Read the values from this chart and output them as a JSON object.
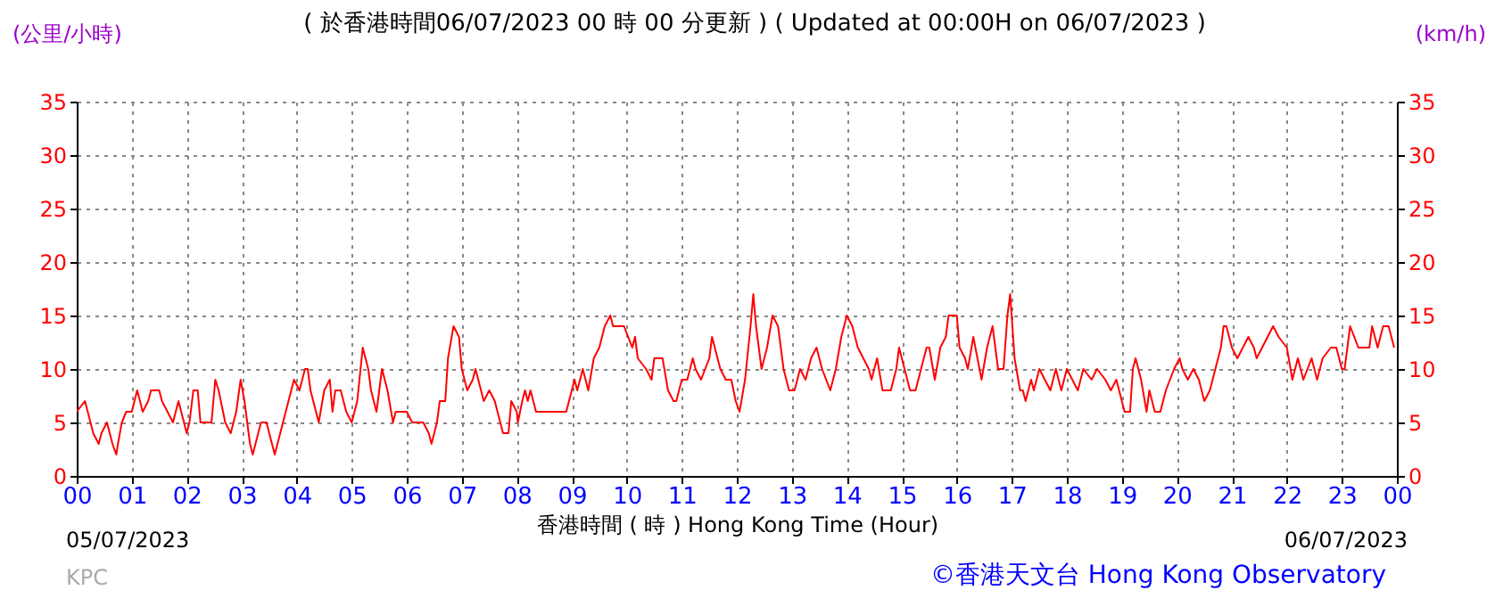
{
  "chart_data": {
    "type": "line",
    "title": "( 於香港時間06/07/2023 00 時 00 分更新 ) ( Updated at 00:00H on 06/07/2023 )",
    "xlabel": "香港時間 ( 時 )  Hong Kong Time (Hour)",
    "ylabel": "(公里/小時)",
    "y2label": "(km/h)",
    "annotations": [
      "05/07/2023",
      "06/07/2023",
      "KPC",
      "©香港天文台 Hong Kong Observatory"
    ],
    "x": [
      0,
      0.15,
      0.2,
      0.25,
      0.3,
      0.4,
      0.45,
      0.55,
      0.6,
      0.65,
      0.72,
      0.75,
      0.82,
      0.9,
      1.0,
      1.05,
      1.1,
      1.2,
      1.3,
      1.35,
      1.5,
      1.55,
      1.65,
      1.75,
      1.85,
      1.9,
      2.0,
      2.05,
      2.12,
      2.2,
      2.25,
      2.45,
      2.52,
      2.58,
      2.7,
      2.8,
      2.9,
      2.98,
      3.05,
      3.1,
      3.15,
      3.2,
      3.3,
      3.35,
      3.45,
      3.55,
      3.6,
      3.7,
      3.8,
      3.9,
      3.95,
      4.05,
      4.15,
      4.2,
      4.25,
      4.4,
      4.5,
      4.6,
      4.65,
      4.7,
      4.8,
      4.9,
      5.0,
      5.1,
      5.2,
      5.3,
      5.35,
      5.45,
      5.55,
      5.65,
      5.75,
      5.8,
      6.0,
      6.1,
      6.3,
      6.4,
      6.45,
      6.55,
      6.6,
      6.7,
      6.75,
      6.85,
      6.95,
      7.0,
      7.1,
      7.2,
      7.25,
      7.35,
      7.4,
      7.5,
      7.6,
      7.7,
      7.75,
      7.85,
      7.9,
      8.0,
      8.02,
      8.1,
      8.15,
      8.2,
      8.25,
      8.3,
      8.35,
      8.9,
      8.95,
      9.0,
      9.05,
      9.1,
      9.2,
      9.25,
      9.3,
      9.4,
      9.5,
      9.6,
      9.7,
      9.75,
      9.95,
      10.1,
      10.15,
      10.2,
      10.35,
      10.45,
      10.5,
      10.65,
      10.75,
      10.85,
      10.9,
      11.0,
      11.1,
      11.2,
      11.25,
      11.35,
      11.5,
      11.55,
      11.65,
      11.7,
      11.8,
      11.9,
      11.98,
      12.05,
      12.15,
      12.25,
      12.3,
      12.35,
      12.45,
      12.55,
      12.65,
      12.75,
      12.85,
      12.95,
      13.05,
      13.15,
      13.25,
      13.35,
      13.45,
      13.55,
      13.7,
      13.8,
      13.9,
      14.0,
      14.1,
      14.2,
      14.3,
      14.4,
      14.45,
      14.55,
      14.65,
      14.8,
      14.9,
      14.95,
      15.05,
      15.15,
      15.25,
      15.35,
      15.45,
      15.5,
      15.6,
      15.7,
      15.8,
      15.85,
      16.0,
      16.05,
      16.15,
      16.2,
      16.3,
      16.45,
      16.55,
      16.65,
      16.75,
      16.85,
      16.92,
      16.97,
      17.05,
      17.15,
      17.2,
      17.25,
      17.35,
      17.4,
      17.5,
      17.6,
      17.7,
      17.8,
      17.9,
      18.0,
      18.1,
      18.2,
      18.3,
      18.45,
      18.55,
      18.7,
      18.8,
      18.9,
      18.95,
      19.05,
      19.15,
      19.2,
      19.25,
      19.35,
      19.45,
      19.5,
      19.6,
      19.7,
      19.8,
      19.95,
      20.05,
      20.1,
      20.2,
      20.3,
      20.4,
      20.5,
      20.6,
      20.7,
      20.8,
      20.85,
      20.9,
      21.0,
      21.1,
      21.2,
      21.3,
      21.4,
      21.45,
      21.55,
      21.65,
      21.75,
      21.85,
      22.0,
      22.1,
      22.2,
      22.3,
      22.45,
      22.55,
      22.65,
      22.8,
      22.9,
      23.0,
      23.05,
      23.1,
      23.15,
      23.3,
      23.5,
      23.55,
      23.65,
      23.75,
      23.85,
      23.95
    ],
    "series": [
      {
        "color": "#ff0000",
        "values": [
          6,
          7,
          6,
          5,
          4,
          3,
          4,
          5,
          4,
          3,
          2,
          3,
          5,
          6,
          6,
          7,
          8,
          6,
          7,
          8,
          8,
          7,
          6,
          5,
          7,
          6,
          4,
          5,
          8,
          8,
          5,
          5,
          9,
          8,
          5,
          4,
          6,
          9,
          7,
          5,
          3,
          2,
          4,
          5,
          5,
          3,
          2,
          4,
          6,
          8,
          9,
          8,
          10,
          10,
          8,
          5,
          8,
          9,
          6,
          8,
          8,
          6,
          5,
          7,
          12,
          10,
          8,
          6,
          10,
          8,
          5,
          6,
          6,
          5,
          5,
          4,
          3,
          5,
          7,
          7,
          11,
          14,
          13,
          10,
          8,
          9,
          10,
          8,
          7,
          8,
          7,
          5,
          4,
          4,
          7,
          6,
          5,
          7,
          8,
          7,
          8,
          7,
          6,
          6,
          7,
          8,
          9,
          8,
          10,
          9,
          8,
          11,
          12,
          14,
          15,
          14,
          14,
          12,
          13,
          11,
          10,
          9,
          11,
          11,
          8,
          7,
          7,
          9,
          9,
          11,
          10,
          9,
          11,
          13,
          11,
          10,
          9,
          9,
          7,
          6,
          9,
          14,
          17,
          14,
          10,
          12,
          15,
          14,
          10,
          8,
          8,
          10,
          9,
          11,
          12,
          10,
          8,
          10,
          13,
          15,
          14,
          12,
          11,
          10,
          9,
          11,
          8,
          8,
          10,
          12,
          10,
          8,
          8,
          10,
          12,
          12,
          9,
          12,
          13,
          15,
          15,
          12,
          11,
          10,
          13,
          9,
          12,
          14,
          10,
          10,
          15,
          17,
          11,
          8,
          8,
          7,
          9,
          8,
          10,
          9,
          8,
          10,
          8,
          10,
          9,
          8,
          10,
          9,
          10,
          9,
          8,
          9,
          8,
          6,
          6,
          10,
          11,
          9,
          6,
          8,
          6,
          6,
          8,
          10,
          11,
          10,
          9,
          10,
          9,
          7,
          8,
          10,
          12,
          14,
          14,
          12,
          11,
          12,
          13,
          12,
          11,
          12,
          13,
          14,
          13,
          12,
          9,
          11,
          9,
          11,
          9,
          11,
          12,
          12,
          10,
          10,
          12,
          14,
          12,
          12,
          14,
          12,
          14,
          14,
          12
        ]
      }
    ],
    "xlim": [
      0,
      24
    ],
    "xticks": [
      {
        "value": 0,
        "label": "00"
      },
      {
        "value": 1,
        "label": "01"
      },
      {
        "value": 2,
        "label": "02"
      },
      {
        "value": 3,
        "label": "03"
      },
      {
        "value": 4,
        "label": "04"
      },
      {
        "value": 5,
        "label": "05"
      },
      {
        "value": 6,
        "label": "06"
      },
      {
        "value": 7,
        "label": "07"
      },
      {
        "value": 8,
        "label": "08"
      },
      {
        "value": 9,
        "label": "09"
      },
      {
        "value": 10,
        "label": "10"
      },
      {
        "value": 11,
        "label": "11"
      },
      {
        "value": 12,
        "label": "12"
      },
      {
        "value": 13,
        "label": "13"
      },
      {
        "value": 14,
        "label": "14"
      },
      {
        "value": 15,
        "label": "15"
      },
      {
        "value": 16,
        "label": "16"
      },
      {
        "value": 17,
        "label": "17"
      },
      {
        "value": 18,
        "label": "18"
      },
      {
        "value": 19,
        "label": "19"
      },
      {
        "value": 20,
        "label": "20"
      },
      {
        "value": 21,
        "label": "21"
      },
      {
        "value": 22,
        "label": "22"
      },
      {
        "value": 23,
        "label": "23"
      },
      {
        "value": 24,
        "label": "00"
      }
    ],
    "ylim": [
      0,
      35
    ],
    "yticks": [
      0,
      5,
      10,
      15,
      20,
      25,
      30,
      35
    ],
    "y2lim": [
      0,
      35
    ],
    "y2ticks": [
      0,
      5,
      10,
      15,
      20,
      25,
      30,
      35
    ],
    "grid": true,
    "marker": "none",
    "line_style": "solid"
  }
}
